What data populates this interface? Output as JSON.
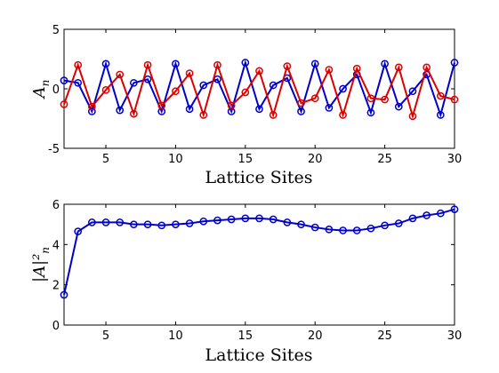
{
  "chart_data": [
    {
      "type": "line",
      "xlabel": "Lattice Sites",
      "ylabel": "A",
      "ylabel_sub": "n",
      "xlim": [
        2,
        30
      ],
      "ylim": [
        -5,
        5
      ],
      "xticks": [
        5,
        10,
        15,
        20,
        25,
        30
      ],
      "yticks": [
        -5,
        0,
        5
      ],
      "grid": false,
      "x": [
        2,
        3,
        4,
        5,
        6,
        7,
        8,
        9,
        10,
        11,
        12,
        13,
        14,
        15,
        16,
        17,
        18,
        19,
        20,
        21,
        22,
        23,
        24,
        25,
        26,
        27,
        28,
        29,
        30
      ],
      "series": [
        {
          "color": "#0000cc",
          "marker": "circle",
          "values": [
            0.7,
            0.5,
            -1.9,
            2.1,
            -1.8,
            0.5,
            0.8,
            -1.9,
            2.1,
            -1.7,
            0.3,
            0.8,
            -1.9,
            2.2,
            -1.7,
            0.3,
            0.9,
            -1.9,
            2.1,
            -1.6,
            0.0,
            1.2,
            -2.0,
            2.1,
            -1.5,
            -0.2,
            1.2,
            -2.2,
            2.2
          ]
        },
        {
          "color": "#dd0000",
          "marker": "circle",
          "values": [
            -1.3,
            2.0,
            -1.5,
            -0.1,
            1.2,
            -2.1,
            2.0,
            -1.4,
            -0.2,
            1.3,
            -2.2,
            2.0,
            -1.4,
            -0.3,
            1.5,
            -2.2,
            1.9,
            -1.2,
            -0.8,
            1.6,
            -2.2,
            1.7,
            -0.8,
            -0.9,
            1.8,
            -2.3,
            1.8,
            -0.6,
            -0.9
          ]
        }
      ]
    },
    {
      "type": "line",
      "xlabel": "Lattice Sites",
      "ylabel": "|A|²",
      "ylabel_sub": "n",
      "xlim": [
        2,
        30
      ],
      "ylim": [
        0,
        6
      ],
      "xticks": [
        5,
        10,
        15,
        20,
        25,
        30
      ],
      "yticks": [
        0,
        2,
        4,
        6
      ],
      "grid": false,
      "x": [
        2,
        3,
        4,
        5,
        6,
        7,
        8,
        9,
        10,
        11,
        12,
        13,
        14,
        15,
        16,
        17,
        18,
        19,
        20,
        21,
        22,
        23,
        24,
        25,
        26,
        27,
        28,
        29,
        30
      ],
      "series": [
        {
          "color": "#0000cc",
          "marker": "circle",
          "values": [
            1.5,
            4.65,
            5.1,
            5.1,
            5.1,
            5.0,
            5.0,
            4.95,
            5.0,
            5.05,
            5.15,
            5.2,
            5.25,
            5.3,
            5.3,
            5.25,
            5.1,
            5.0,
            4.85,
            4.75,
            4.7,
            4.7,
            4.8,
            4.95,
            5.05,
            5.3,
            5.45,
            5.55,
            5.75
          ]
        }
      ]
    }
  ]
}
